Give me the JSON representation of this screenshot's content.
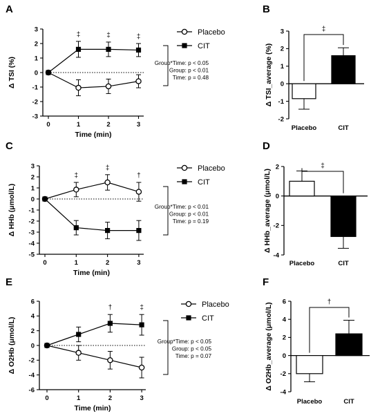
{
  "chart_data": [
    {
      "panel": "A",
      "type": "line",
      "ylabel": "Δ TSI (%)",
      "xlabel": "Time (min)",
      "x": [
        0,
        1,
        2,
        3
      ],
      "ylim": [
        -3,
        3
      ],
      "yticks": [
        -3,
        -2,
        -1,
        0,
        1,
        2,
        3
      ],
      "series": [
        {
          "name": "Placebo",
          "values": [
            0,
            -1.05,
            -0.95,
            -0.6
          ],
          "err": [
            0,
            0.55,
            0.5,
            0.45
          ]
        },
        {
          "name": "CIT",
          "values": [
            0,
            1.6,
            1.6,
            1.55
          ],
          "err": [
            0,
            0.55,
            0.5,
            0.45
          ]
        }
      ],
      "sig_marks": [
        "",
        "‡",
        "‡",
        "‡"
      ],
      "stats": [
        "Group*Time: p < 0.05",
        "Group: p < 0.01",
        "Time: p = 0.48"
      ]
    },
    {
      "panel": "B",
      "type": "bar",
      "ylabel": "Δ TSI_average (%)",
      "categories": [
        "Placebo",
        "CIT"
      ],
      "values": [
        -0.85,
        1.6
      ],
      "err": [
        0.6,
        0.45
      ],
      "ylim": [
        -2,
        3
      ],
      "yticks": [
        -2,
        -1,
        0,
        1,
        2,
        3
      ],
      "sig": "‡"
    },
    {
      "panel": "C",
      "type": "line",
      "ylabel": "Δ HHb (μmol/L)",
      "xlabel": "Time (min)",
      "x": [
        0,
        1,
        2,
        3
      ],
      "ylim": [
        -5,
        3
      ],
      "yticks": [
        -5,
        -4,
        -3,
        -2,
        -1,
        0,
        1,
        2,
        3
      ],
      "series": [
        {
          "name": "Placebo",
          "values": [
            0,
            0.85,
            1.5,
            0.65
          ],
          "err": [
            0,
            0.65,
            0.7,
            0.85
          ]
        },
        {
          "name": "CIT",
          "values": [
            0,
            -2.6,
            -2.85,
            -2.85
          ],
          "err": [
            0,
            0.65,
            0.75,
            0.9
          ]
        }
      ],
      "sig_marks": [
        "",
        "‡",
        "‡",
        "†"
      ],
      "stats": [
        "Group*Time: p < 0.01",
        "Group: p < 0.01",
        "Time: p = 0.19"
      ]
    },
    {
      "panel": "D",
      "type": "bar",
      "ylabel": "Δ HHb_average (μmol/L)",
      "categories": [
        "Placebo",
        "CIT"
      ],
      "values": [
        1.0,
        -2.75
      ],
      "err": [
        0.7,
        0.8
      ],
      "ylim": [
        -4,
        2
      ],
      "yticks": [
        -4,
        -2,
        0,
        2
      ],
      "sig": "‡"
    },
    {
      "panel": "E",
      "type": "line",
      "ylabel": "Δ O2Hb (μmol/L)",
      "xlabel": "Time (min)",
      "x": [
        0,
        1,
        2,
        3
      ],
      "ylim": [
        -6,
        6
      ],
      "yticks": [
        -6,
        -4,
        -2,
        0,
        2,
        4,
        6
      ],
      "series": [
        {
          "name": "Placebo",
          "values": [
            0,
            -1.0,
            -2.0,
            -3.0
          ],
          "err": [
            0,
            1.0,
            1.2,
            1.4
          ]
        },
        {
          "name": "CIT",
          "values": [
            0,
            1.5,
            3.0,
            2.8
          ],
          "err": [
            0,
            1.0,
            1.2,
            1.4
          ]
        }
      ],
      "sig_marks": [
        "",
        "",
        "†",
        "‡"
      ],
      "stats": [
        "Group*Time: p < 0.05",
        "Group: p < 0.05",
        "Time: p = 0.07"
      ]
    },
    {
      "panel": "F",
      "type": "bar",
      "ylabel": "Δ O2Hb_average (μmol/L)",
      "categories": [
        "Placebo",
        "CIT"
      ],
      "values": [
        -2.0,
        2.4
      ],
      "err": [
        0.9,
        1.5
      ],
      "ylim": [
        -4,
        6
      ],
      "yticks": [
        -4,
        -2,
        0,
        2,
        4,
        6
      ],
      "sig": "†"
    }
  ]
}
